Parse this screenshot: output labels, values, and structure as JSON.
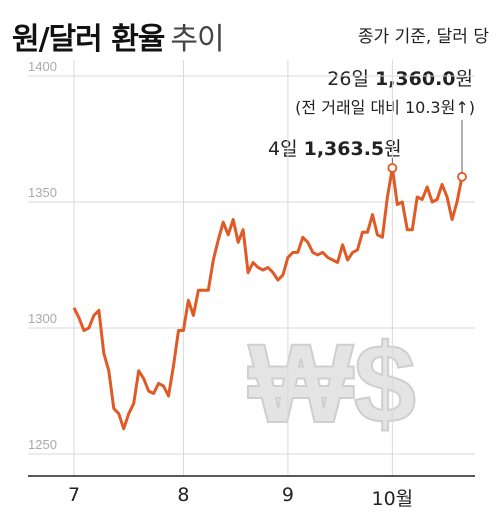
{
  "header": {
    "title": "원/달러 환율",
    "subtitle": "추이",
    "note": "종가 기준, 달러 당"
  },
  "callouts": {
    "last_prefix": "26일 ",
    "last_value": "1,360.0",
    "last_unit": "원",
    "last_change": "(전 거래일 대비 10.3원↑)",
    "peak_prefix": "4일 ",
    "peak_value": "1,363.5",
    "peak_unit": "원"
  },
  "watermark": "₩$",
  "colors": {
    "line": "#e05a25",
    "grid": "#d9d9d9",
    "axis": "#222222"
  },
  "chart_data": {
    "type": "line",
    "title": "원/달러 환율 추이",
    "ylim": [
      1250,
      1400
    ],
    "yticks": [
      "1400",
      "1350",
      "1300",
      "1250"
    ],
    "ytick_values": [
      1400,
      1350,
      1300,
      1250
    ],
    "xticks": [
      "7",
      "8",
      "9",
      "10월"
    ],
    "xtick_index": [
      0,
      22,
      43,
      64
    ],
    "grid": true,
    "series": [
      {
        "values": [
          1308,
          1304,
          1299,
          1300,
          1305,
          1307,
          1290,
          1283,
          1268,
          1266,
          1260,
          1266,
          1270,
          1283,
          1280,
          1275,
          1274,
          1278,
          1277,
          1273,
          1285,
          1299,
          1299,
          1311,
          1305,
          1315,
          1315,
          1315,
          1327,
          1335,
          1342,
          1337,
          1343,
          1334,
          1339,
          1322,
          1326,
          1324,
          1323,
          1324,
          1322,
          1319,
          1321,
          1328,
          1330,
          1330,
          1336,
          1334,
          1330,
          1329,
          1330,
          1328,
          1327,
          1326,
          1333,
          1327,
          1330,
          1331,
          1338,
          1338,
          1345,
          1337,
          1336,
          1352,
          1363.5,
          1349,
          1350,
          1339,
          1339,
          1352,
          1351,
          1356,
          1350,
          1351,
          1357,
          1352,
          1343,
          1350,
          1360
        ]
      }
    ]
  }
}
